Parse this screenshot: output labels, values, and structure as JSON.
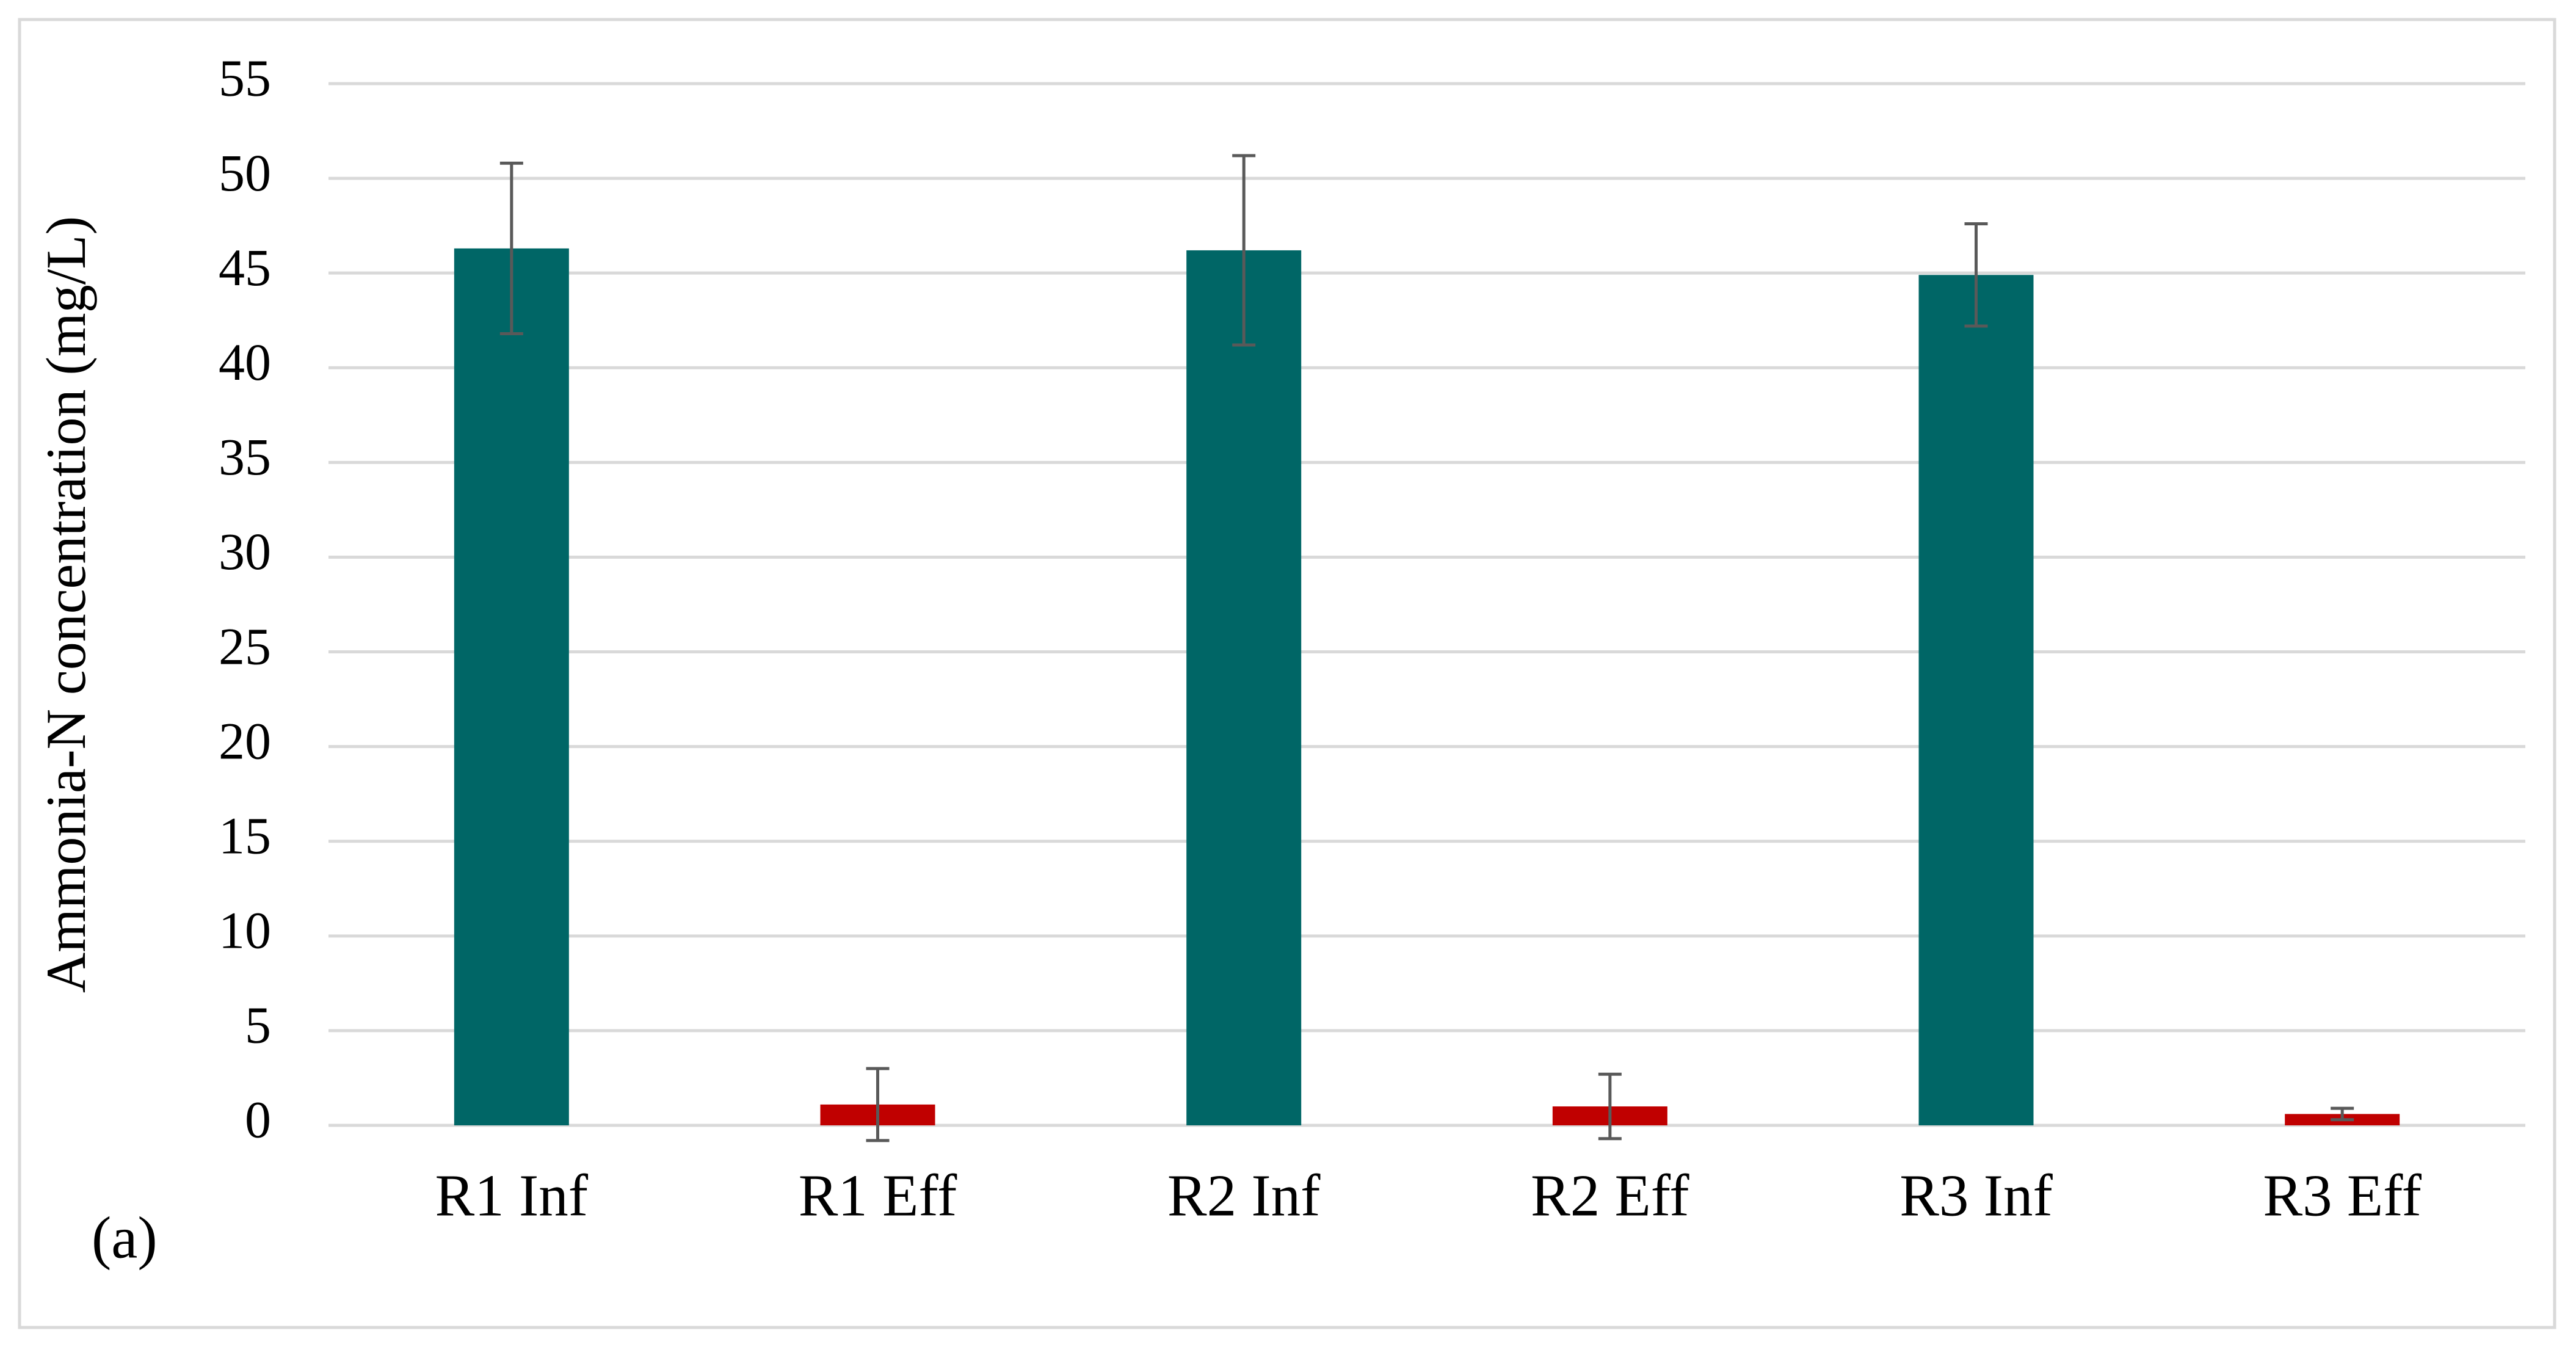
{
  "chart_data": {
    "type": "bar",
    "y_label": "Ammonia-N concentration (mg/L)",
    "annotation": "(a)",
    "categories": [
      "R1 Inf",
      "R1 Eff",
      "R2 Inf",
      "R2 Eff",
      "R3 Inf",
      "R3 Eff"
    ],
    "values": [
      46.3,
      1.1,
      46.2,
      1.0,
      44.9,
      0.6
    ],
    "errors": [
      4.5,
      1.9,
      5.0,
      1.7,
      2.7,
      0.3
    ],
    "colors": [
      "#006666",
      "#c00000",
      "#006666",
      "#c00000",
      "#006666",
      "#c00000"
    ],
    "error_color": "#595959",
    "ylim": [
      0,
      55
    ],
    "yticks": [
      0,
      5,
      10,
      15,
      20,
      25,
      30,
      35,
      40,
      45,
      50,
      55
    ],
    "grid": true
  }
}
